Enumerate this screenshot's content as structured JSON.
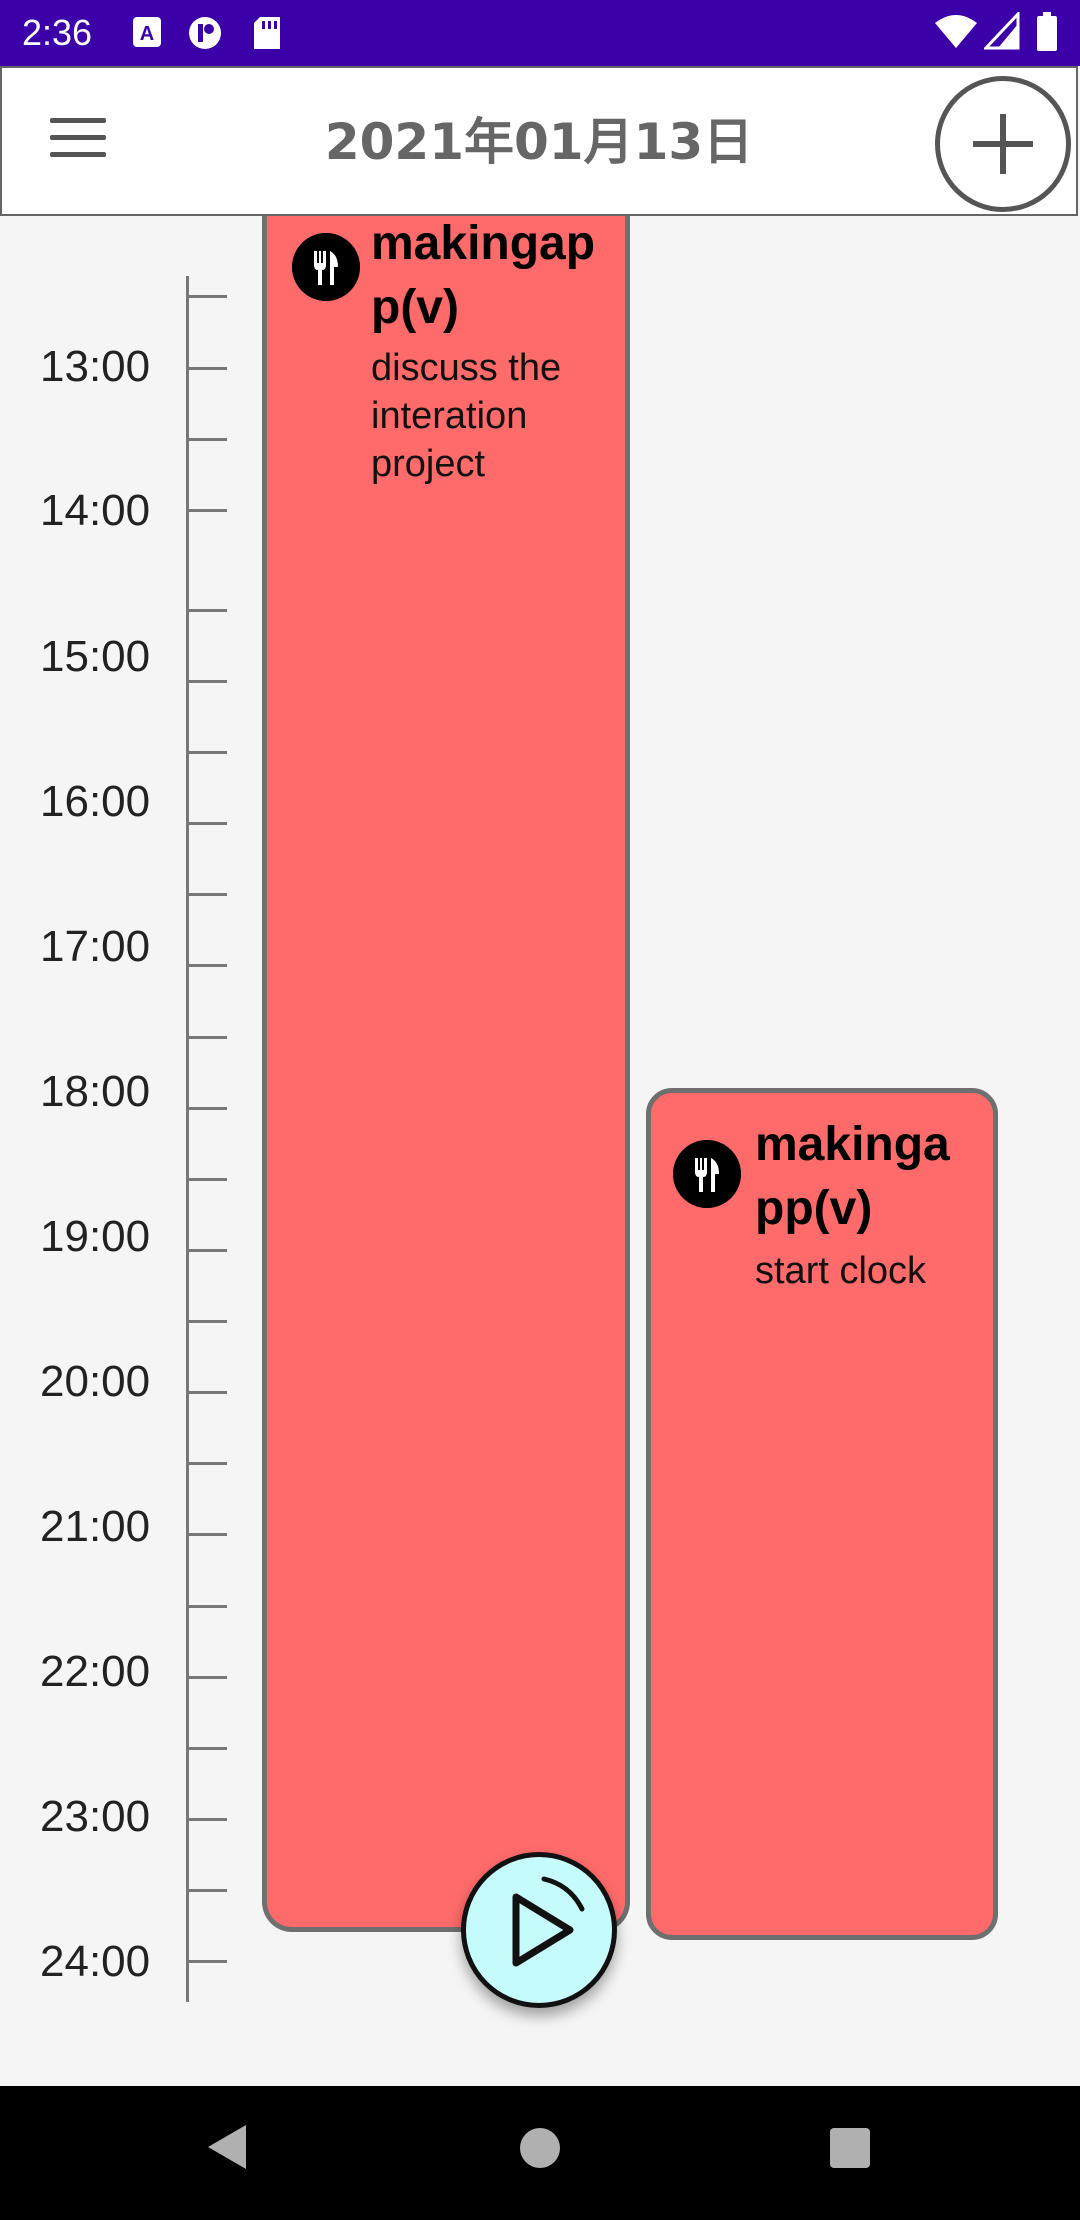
{
  "status_bar": {
    "time": "2:36",
    "icons_left": [
      "a-notification-icon",
      "p-notification-icon",
      "sd-card-icon"
    ],
    "icons_right": [
      "wifi-icon",
      "signal-icon",
      "battery-icon"
    ],
    "background": "#3b00a8"
  },
  "header": {
    "title": "2021年01月13日",
    "menu_icon": "hamburger-menu-icon",
    "add_icon": "plus-circle-icon"
  },
  "timeline": {
    "hours": [
      "13:00",
      "14:00",
      "15:00",
      "16:00",
      "17:00",
      "18:00",
      "19:00",
      "20:00",
      "21:00",
      "22:00",
      "23:00",
      "24:00"
    ]
  },
  "events": [
    {
      "title_line1": "makingap",
      "title_line2": "p(v)",
      "desc_lines": [
        "discuss the",
        "interation",
        "project"
      ],
      "icon": "fork-knife-icon",
      "color": "#ff6b6b"
    },
    {
      "title_line1": "makinga",
      "title_line2": "pp(v)",
      "desc_lines": [
        "start clock"
      ],
      "icon": "fork-knife-icon",
      "color": "#ff6b6b"
    }
  ],
  "fab": {
    "icon": "play-icon",
    "color": "#c6fbfb"
  },
  "nav_bar": {
    "icons": [
      "back-triangle-icon",
      "home-circle-icon",
      "recents-square-icon"
    ]
  }
}
